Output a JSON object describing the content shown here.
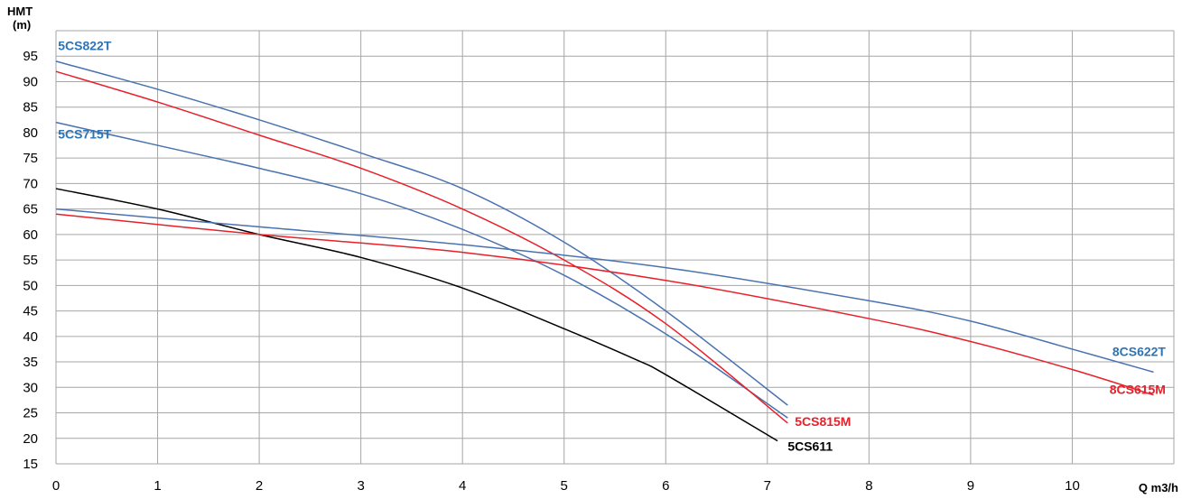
{
  "chart_data": {
    "type": "line",
    "title": "",
    "xlabel": "Q m3/h",
    "ylabel_lines": [
      "HMT",
      "(m)"
    ],
    "xlim": [
      0,
      11
    ],
    "ylim": [
      15,
      100
    ],
    "x_ticks": [
      0,
      1,
      2,
      3,
      4,
      5,
      6,
      7,
      8,
      9,
      10
    ],
    "y_ticks": [
      15,
      20,
      25,
      30,
      35,
      40,
      45,
      50,
      55,
      60,
      65,
      70,
      75,
      80,
      85,
      90,
      95
    ],
    "grid": true,
    "legend": "none",
    "series": [
      {
        "name": "5CS822T",
        "color": "#4a72b0",
        "label_color": "#2e74b5",
        "x": [
          0,
          1,
          2,
          3,
          4,
          5,
          6,
          7.2
        ],
        "y": [
          94,
          88.5,
          82.5,
          76,
          69,
          58.5,
          45,
          26.5
        ]
      },
      {
        "name": "5CS715T",
        "color": "#4a72b0",
        "label_color": "#2e74b5",
        "x": [
          0,
          1,
          2,
          3,
          4,
          5,
          6,
          7.2
        ],
        "y": [
          82,
          77.5,
          73,
          68,
          61,
          52,
          40.5,
          24
        ]
      },
      {
        "name": "5CS815M",
        "color": "#e8202a",
        "label_color": "#e8202a",
        "x": [
          0,
          1,
          2,
          3,
          4,
          5,
          6,
          7.2
        ],
        "y": [
          92,
          86,
          79.5,
          73,
          65,
          55,
          42.5,
          23
        ]
      },
      {
        "name": "5CS611",
        "color": "#000000",
        "label_color": "#000000",
        "x": [
          0,
          1,
          2,
          3,
          4,
          5,
          5.7,
          6,
          7.1
        ],
        "y": [
          69,
          65,
          60,
          55.5,
          49.5,
          41.5,
          35.5,
          32.5,
          19.5
        ]
      },
      {
        "name": "8CS622T",
        "color": "#4a72b0",
        "label_color": "#2e74b5",
        "x": [
          0,
          2,
          4,
          6,
          8,
          9,
          10,
          10.8
        ],
        "y": [
          65,
          61.5,
          58,
          53.5,
          47,
          43,
          37.5,
          33
        ]
      },
      {
        "name": "8CS615M",
        "color": "#e8202a",
        "label_color": "#e8202a",
        "x": [
          0,
          2,
          4,
          6,
          8,
          9,
          10,
          10.8
        ],
        "y": [
          64,
          60,
          56.5,
          51,
          43.5,
          39,
          33.5,
          28.5
        ]
      }
    ]
  }
}
